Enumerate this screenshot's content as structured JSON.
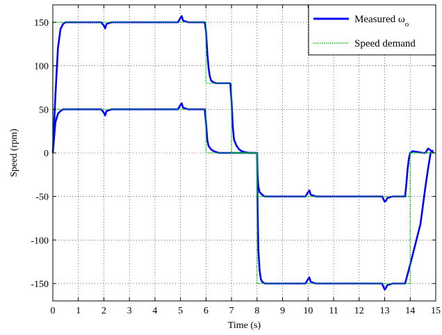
{
  "chart_data": {
    "type": "line",
    "title": "",
    "xlabel": "Time (s)",
    "ylabel": "Speed (rpm)",
    "xlim": [
      0,
      15
    ],
    "ylim": [
      -170,
      170
    ],
    "xticks": [
      0,
      1,
      2,
      3,
      4,
      5,
      6,
      7,
      8,
      9,
      10,
      11,
      12,
      13,
      14,
      15
    ],
    "yticks": [
      -150,
      -100,
      -50,
      0,
      50,
      100,
      150
    ],
    "grid": true,
    "legend_position": "top-right",
    "legend": {
      "measured_main": "Measured ω",
      "measured_sub": "o",
      "demand": "Speed demand"
    },
    "colors": {
      "measured": "#0000ff",
      "demand": "#00cc00"
    },
    "series": [
      {
        "role": "measured-upper",
        "x": [
          0,
          0.1,
          0.2,
          0.3,
          0.4,
          0.5,
          0.7,
          1.0,
          1.9,
          2.0,
          2.05,
          2.1,
          2.3,
          4.9,
          5.0,
          5.05,
          5.1,
          5.3,
          5.95,
          6.0,
          6.05,
          6.1,
          6.15,
          6.2,
          6.3,
          6.4,
          6.45,
          6.5,
          6.95,
          7.0,
          7.05,
          7.1,
          7.2,
          7.3,
          7.4,
          7.5,
          7.7,
          8.0,
          8.02,
          8.05,
          8.1,
          8.15,
          8.2,
          8.3,
          8.4,
          8.6,
          9.0,
          9.9,
          10.0,
          10.05,
          10.1,
          10.3,
          12.9,
          13.0,
          13.05,
          13.1,
          13.3,
          13.75,
          13.8,
          14.0,
          14.2,
          14.4,
          14.5,
          14.6,
          14.7,
          14.8,
          14.9
        ],
        "y": [
          0,
          65,
          120,
          142,
          148,
          150,
          150,
          150,
          150,
          146,
          143,
          148,
          150,
          150,
          155,
          157,
          152,
          150,
          150,
          140,
          115,
          98,
          88,
          83,
          81,
          80,
          80,
          80,
          80,
          60,
          30,
          15,
          8,
          4,
          2,
          1,
          0,
          0,
          -60,
          -110,
          -135,
          -145,
          -148,
          -150,
          -150,
          -150,
          -150,
          -150,
          -145,
          -143,
          -148,
          -150,
          -150,
          -157,
          -155,
          -152,
          -150,
          -150,
          -150,
          -128,
          -105,
          -82,
          -60,
          -38,
          -18,
          0,
          3
        ]
      },
      {
        "role": "measured-lower",
        "x": [
          0,
          0.1,
          0.2,
          0.3,
          0.4,
          0.6,
          1.0,
          1.9,
          2.0,
          2.05,
          2.1,
          2.3,
          4.9,
          5.0,
          5.05,
          5.1,
          5.3,
          5.95,
          6.0,
          6.05,
          6.1,
          6.2,
          6.3,
          6.5,
          6.7,
          7.0,
          7.5,
          8.0,
          8.02,
          8.05,
          8.1,
          8.2,
          8.3,
          8.5,
          9.0,
          9.9,
          10.0,
          10.05,
          10.1,
          10.3,
          12.9,
          13.0,
          13.05,
          13.1,
          13.3,
          13.8,
          13.85,
          13.9,
          13.95,
          14.0,
          14.1,
          14.3,
          14.5,
          14.6,
          14.7,
          14.8,
          14.9
        ],
        "y": [
          0,
          35,
          45,
          48,
          50,
          50,
          50,
          50,
          46,
          43,
          48,
          50,
          50,
          55,
          57,
          52,
          50,
          50,
          35,
          15,
          8,
          4,
          2,
          0,
          0,
          0,
          0,
          0,
          -25,
          -38,
          -45,
          -48,
          -50,
          -50,
          -50,
          -50,
          -45,
          -43,
          -48,
          -50,
          -50,
          -56,
          -55,
          -52,
          -50,
          -50,
          -35,
          -18,
          -6,
          0,
          2,
          1,
          0,
          0,
          5,
          3,
          0
        ]
      },
      {
        "role": "demand-upper",
        "x": [
          0,
          0,
          6,
          6,
          7,
          7,
          8,
          8,
          14,
          14,
          15
        ],
        "y": [
          0,
          150,
          150,
          80,
          80,
          0,
          0,
          -150,
          -150,
          0,
          0
        ]
      },
      {
        "role": "demand-lower",
        "x": [
          0,
          0,
          6,
          6,
          8,
          8,
          14,
          14,
          15
        ],
        "y": [
          0,
          50,
          50,
          0,
          0,
          -50,
          -50,
          0,
          0
        ]
      }
    ]
  }
}
